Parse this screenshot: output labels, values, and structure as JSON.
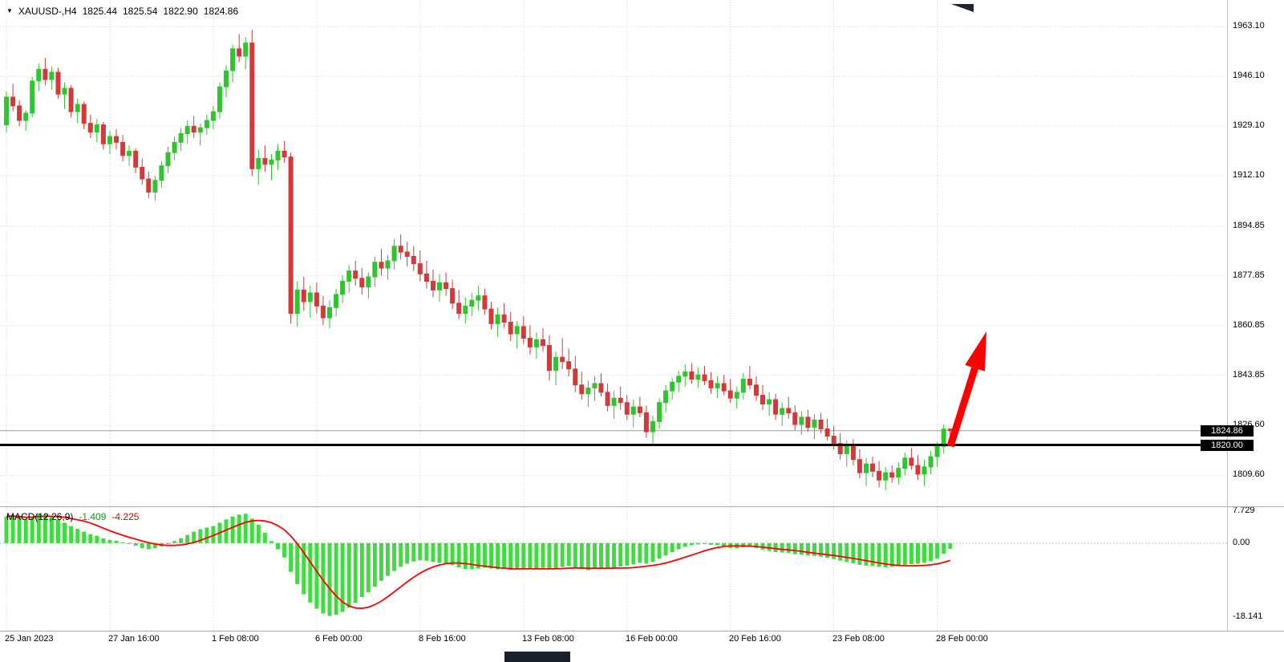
{
  "header": {
    "menu_icon": "▼",
    "symbol_timeframe": "XAUUSD-,H4",
    "open": "1825.44",
    "high": "1825.54",
    "low": "1822.90",
    "close": "1824.86"
  },
  "indicator_label": {
    "name": "MACD(12,26,9)",
    "main_value": "-1.409",
    "signal_value": "-4.225"
  },
  "colors": {
    "candle_up": "#2fc52f",
    "candle_down": "#d03a3a",
    "macd_bar": "#3fdc3f",
    "signal_line": "#ff0000",
    "horizontal_line": "#000000",
    "grid": "#d2d2d2",
    "current_price_line": "#9e9e9e",
    "arrow": "#ff0000",
    "price_tag_bg": "#000000",
    "price_tag_text": "#ffffff"
  },
  "chart_data": {
    "type": "candlestick",
    "title": "XAUUSD- H4",
    "symbol": "XAUUSD-",
    "timeframe": "H4",
    "y_axis": {
      "range_top": 1972.2,
      "range_bottom": 1799.0,
      "labels": [
        {
          "text": "1963.10",
          "value": 1963.1
        },
        {
          "text": "1946.10",
          "value": 1946.1
        },
        {
          "text": "1929.10",
          "value": 1929.1
        },
        {
          "text": "1912.10",
          "value": 1912.1
        },
        {
          "text": "1894.85",
          "value": 1894.85
        },
        {
          "text": "1877.85",
          "value": 1877.85
        },
        {
          "text": "1860.85",
          "value": 1860.85
        },
        {
          "text": "1843.85",
          "value": 1843.85
        },
        {
          "text": "1826.60",
          "value": 1826.6
        },
        {
          "text": "1809.60",
          "value": 1809.6
        }
      ]
    },
    "x_axis": {
      "labels": [
        {
          "text": "25 Jan 2023",
          "index": 0
        },
        {
          "text": "27 Jan 16:00",
          "index": 16
        },
        {
          "text": "1 Feb 08:00",
          "index": 32
        },
        {
          "text": "6 Feb 00:00",
          "index": 48
        },
        {
          "text": "8 Feb 16:00",
          "index": 64
        },
        {
          "text": "13 Feb 08:00",
          "index": 80
        },
        {
          "text": "16 Feb 00:00",
          "index": 96
        },
        {
          "text": "20 Feb 16:00",
          "index": 112
        },
        {
          "text": "23 Feb 08:00",
          "index": 128
        },
        {
          "text": "28 Feb 00:00",
          "index": 144
        }
      ]
    },
    "ohlc": [
      [
        1929.5,
        1941.0,
        1927.0,
        1939.0
      ],
      [
        1939.0,
        1943.5,
        1934.0,
        1936.0
      ],
      [
        1936.0,
        1938.0,
        1929.0,
        1931.0
      ],
      [
        1931.0,
        1934.5,
        1927.5,
        1933.5
      ],
      [
        1933.5,
        1946.0,
        1932.0,
        1944.5
      ],
      [
        1944.5,
        1950.5,
        1941.0,
        1948.5
      ],
      [
        1948.5,
        1952.5,
        1943.0,
        1945.0
      ],
      [
        1945.0,
        1949.5,
        1941.5,
        1947.5
      ],
      [
        1947.5,
        1949.0,
        1938.5,
        1940.0
      ],
      [
        1940.0,
        1944.0,
        1935.0,
        1942.0
      ],
      [
        1942.0,
        1943.0,
        1932.0,
        1934.0
      ],
      [
        1934.0,
        1938.5,
        1930.0,
        1936.5
      ],
      [
        1936.5,
        1937.5,
        1928.0,
        1930.0
      ],
      [
        1930.0,
        1933.0,
        1925.0,
        1927.0
      ],
      [
        1927.0,
        1931.5,
        1923.5,
        1929.5
      ],
      [
        1929.5,
        1930.5,
        1921.0,
        1923.0
      ],
      [
        1923.0,
        1927.5,
        1919.5,
        1925.5
      ],
      [
        1925.5,
        1928.0,
        1921.0,
        1923.5
      ],
      [
        1923.5,
        1926.0,
        1917.0,
        1919.0
      ],
      [
        1919.0,
        1922.5,
        1915.5,
        1920.5
      ],
      [
        1920.5,
        1921.5,
        1913.0,
        1915.0
      ],
      [
        1915.0,
        1918.0,
        1909.0,
        1911.0
      ],
      [
        1911.0,
        1913.5,
        1904.5,
        1906.5
      ],
      [
        1906.5,
        1912.0,
        1903.5,
        1910.5
      ],
      [
        1910.5,
        1917.0,
        1908.0,
        1915.5
      ],
      [
        1915.5,
        1922.0,
        1913.0,
        1920.0
      ],
      [
        1920.0,
        1925.5,
        1917.5,
        1923.5
      ],
      [
        1923.5,
        1928.5,
        1920.5,
        1926.5
      ],
      [
        1926.5,
        1931.0,
        1923.0,
        1929.0
      ],
      [
        1929.0,
        1932.5,
        1925.0,
        1927.0
      ],
      [
        1927.0,
        1930.0,
        1922.5,
        1928.5
      ],
      [
        1928.5,
        1933.0,
        1926.0,
        1931.0
      ],
      [
        1931.0,
        1936.0,
        1928.0,
        1934.0
      ],
      [
        1934.0,
        1944.0,
        1931.5,
        1942.5
      ],
      [
        1942.5,
        1950.0,
        1939.0,
        1948.0
      ],
      [
        1948.0,
        1957.0,
        1944.0,
        1955.5
      ],
      [
        1955.5,
        1960.5,
        1951.0,
        1953.0
      ],
      [
        1953.0,
        1959.5,
        1948.5,
        1957.5
      ],
      [
        1957.5,
        1962.0,
        1912.0,
        1914.5
      ],
      [
        1914.5,
        1921.0,
        1909.0,
        1918.0
      ],
      [
        1918.0,
        1922.5,
        1913.5,
        1916.0
      ],
      [
        1916.0,
        1919.5,
        1910.5,
        1917.5
      ],
      [
        1917.5,
        1923.0,
        1914.0,
        1920.5
      ],
      [
        1920.5,
        1924.0,
        1916.5,
        1918.5
      ],
      [
        1918.5,
        1920.0,
        1861.5,
        1865.0
      ],
      [
        1865.0,
        1876.0,
        1860.5,
        1873.0
      ],
      [
        1873.0,
        1877.5,
        1866.0,
        1869.0
      ],
      [
        1869.0,
        1874.5,
        1863.5,
        1872.0
      ],
      [
        1872.0,
        1875.5,
        1865.0,
        1867.5
      ],
      [
        1867.5,
        1871.0,
        1861.0,
        1863.5
      ],
      [
        1863.5,
        1869.5,
        1860.0,
        1867.0
      ],
      [
        1867.0,
        1873.5,
        1864.0,
        1871.5
      ],
      [
        1871.5,
        1878.0,
        1868.5,
        1876.0
      ],
      [
        1876.0,
        1881.5,
        1872.0,
        1879.5
      ],
      [
        1879.5,
        1883.0,
        1874.5,
        1877.0
      ],
      [
        1877.0,
        1880.5,
        1871.5,
        1874.0
      ],
      [
        1874.0,
        1879.0,
        1870.0,
        1877.5
      ],
      [
        1877.5,
        1884.5,
        1874.0,
        1882.5
      ],
      [
        1882.5,
        1887.0,
        1878.0,
        1880.5
      ],
      [
        1880.5,
        1885.0,
        1876.5,
        1883.0
      ],
      [
        1883.0,
        1890.5,
        1880.0,
        1888.0
      ],
      [
        1888.0,
        1892.0,
        1883.5,
        1886.0
      ],
      [
        1886.0,
        1889.5,
        1881.0,
        1884.5
      ],
      [
        1884.5,
        1888.0,
        1879.5,
        1882.0
      ],
      [
        1882.0,
        1886.5,
        1876.0,
        1878.5
      ],
      [
        1878.5,
        1883.0,
        1873.5,
        1876.0
      ],
      [
        1876.0,
        1880.0,
        1870.5,
        1873.0
      ],
      [
        1873.0,
        1878.5,
        1869.0,
        1875.5
      ],
      [
        1875.5,
        1879.0,
        1871.0,
        1873.5
      ],
      [
        1873.5,
        1876.5,
        1866.5,
        1868.5
      ],
      [
        1868.5,
        1873.0,
        1863.0,
        1865.0
      ],
      [
        1865.0,
        1870.5,
        1861.5,
        1867.5
      ],
      [
        1867.5,
        1872.0,
        1864.0,
        1869.5
      ],
      [
        1869.5,
        1874.5,
        1866.0,
        1871.0
      ],
      [
        1871.0,
        1873.5,
        1864.5,
        1866.5
      ],
      [
        1866.5,
        1869.0,
        1859.5,
        1861.5
      ],
      [
        1861.5,
        1867.0,
        1857.0,
        1864.5
      ],
      [
        1864.5,
        1868.5,
        1860.0,
        1862.0
      ],
      [
        1862.0,
        1865.5,
        1855.5,
        1858.0
      ],
      [
        1858.0,
        1862.5,
        1853.0,
        1860.5
      ],
      [
        1860.5,
        1864.0,
        1854.5,
        1856.5
      ],
      [
        1856.5,
        1861.0,
        1851.0,
        1853.5
      ],
      [
        1853.5,
        1858.5,
        1849.5,
        1856.0
      ],
      [
        1856.0,
        1860.0,
        1852.0,
        1854.0
      ],
      [
        1854.0,
        1857.5,
        1842.0,
        1845.5
      ],
      [
        1845.5,
        1852.0,
        1840.5,
        1850.0
      ],
      [
        1850.0,
        1856.5,
        1846.0,
        1848.5
      ],
      [
        1848.5,
        1853.0,
        1843.5,
        1846.0
      ],
      [
        1846.0,
        1850.5,
        1838.0,
        1840.5
      ],
      [
        1840.5,
        1845.0,
        1835.5,
        1837.5
      ],
      [
        1837.5,
        1842.0,
        1833.0,
        1839.5
      ],
      [
        1839.5,
        1843.5,
        1835.0,
        1841.0
      ],
      [
        1841.0,
        1844.5,
        1836.5,
        1838.0
      ],
      [
        1838.0,
        1841.0,
        1831.5,
        1833.5
      ],
      [
        1833.5,
        1838.5,
        1829.0,
        1836.0
      ],
      [
        1836.0,
        1840.0,
        1832.0,
        1834.5
      ],
      [
        1834.5,
        1837.0,
        1828.5,
        1830.5
      ],
      [
        1830.5,
        1835.5,
        1826.0,
        1833.0
      ],
      [
        1833.0,
        1836.5,
        1829.5,
        1831.0
      ],
      [
        1831.0,
        1833.5,
        1822.5,
        1824.5
      ],
      [
        1824.5,
        1830.0,
        1820.5,
        1828.0
      ],
      [
        1828.0,
        1836.0,
        1825.5,
        1834.5
      ],
      [
        1834.5,
        1840.5,
        1831.0,
        1838.5
      ],
      [
        1838.5,
        1843.0,
        1835.5,
        1841.5
      ],
      [
        1841.5,
        1845.5,
        1838.0,
        1843.5
      ],
      [
        1843.5,
        1847.5,
        1840.0,
        1845.0
      ],
      [
        1845.0,
        1848.0,
        1841.0,
        1842.5
      ],
      [
        1842.5,
        1846.5,
        1839.5,
        1844.0
      ],
      [
        1844.0,
        1847.0,
        1840.5,
        1842.0
      ],
      [
        1842.0,
        1845.0,
        1837.5,
        1839.5
      ],
      [
        1839.5,
        1843.5,
        1836.0,
        1841.0
      ],
      [
        1841.0,
        1844.0,
        1837.0,
        1838.5
      ],
      [
        1838.5,
        1842.5,
        1834.5,
        1836.0
      ],
      [
        1836.0,
        1840.0,
        1832.5,
        1838.0
      ],
      [
        1838.0,
        1844.5,
        1835.5,
        1842.5
      ],
      [
        1842.5,
        1847.0,
        1839.0,
        1840.5
      ],
      [
        1840.5,
        1843.5,
        1835.0,
        1837.0
      ],
      [
        1837.0,
        1840.5,
        1832.0,
        1834.0
      ],
      [
        1834.0,
        1838.0,
        1830.0,
        1835.5
      ],
      [
        1835.5,
        1837.5,
        1828.5,
        1830.5
      ],
      [
        1830.5,
        1834.5,
        1826.5,
        1832.5
      ],
      [
        1832.5,
        1836.5,
        1829.0,
        1831.0
      ],
      [
        1831.0,
        1833.5,
        1825.0,
        1827.0
      ],
      [
        1827.0,
        1831.5,
        1823.5,
        1829.5
      ],
      [
        1829.5,
        1832.0,
        1824.5,
        1826.0
      ],
      [
        1826.0,
        1830.5,
        1822.0,
        1828.5
      ],
      [
        1828.5,
        1831.0,
        1824.0,
        1825.5
      ],
      [
        1825.5,
        1829.0,
        1821.5,
        1823.0
      ],
      [
        1823.0,
        1826.5,
        1818.5,
        1820.5
      ],
      [
        1820.5,
        1824.0,
        1815.0,
        1817.0
      ],
      [
        1817.0,
        1821.5,
        1812.5,
        1819.5
      ],
      [
        1819.5,
        1822.0,
        1813.0,
        1815.0
      ],
      [
        1815.0,
        1818.5,
        1808.5,
        1810.5
      ],
      [
        1810.5,
        1815.5,
        1806.0,
        1813.5
      ],
      [
        1813.5,
        1816.0,
        1809.0,
        1811.0
      ],
      [
        1811.0,
        1814.5,
        1805.5,
        1808.0
      ],
      [
        1808.0,
        1812.5,
        1804.5,
        1810.5
      ],
      [
        1810.5,
        1813.0,
        1807.0,
        1809.0
      ],
      [
        1809.0,
        1814.0,
        1806.5,
        1812.0
      ],
      [
        1812.0,
        1817.5,
        1809.5,
        1815.5
      ],
      [
        1815.5,
        1819.0,
        1811.5,
        1813.0
      ],
      [
        1813.0,
        1816.5,
        1808.0,
        1810.0
      ],
      [
        1810.0,
        1815.0,
        1806.0,
        1812.5
      ],
      [
        1812.5,
        1818.0,
        1810.0,
        1816.0
      ],
      [
        1816.0,
        1821.0,
        1812.5,
        1819.5
      ],
      [
        1819.5,
        1827.0,
        1817.0,
        1825.44
      ],
      [
        1825.44,
        1825.54,
        1822.9,
        1824.86
      ]
    ],
    "indicator": {
      "name": "MACD(12,26,9)",
      "main_value": -1.409,
      "signal_value": -4.225,
      "signal_period": 9,
      "y_top_value": 8.8,
      "y_bottom_value": -21.4,
      "y_labels": [
        {
          "text": "7.729",
          "value": 7.729
        },
        {
          "text": "0.00",
          "value": 0
        },
        {
          "text": "-18.141",
          "value": -18.141
        }
      ],
      "histogram": [
        6.5,
        6.8,
        6.2,
        5.8,
        6.5,
        7.2,
        7.0,
        6.5,
        5.8,
        5.0,
        4.2,
        3.5,
        2.8,
        2.2,
        1.8,
        1.2,
        0.8,
        0.6,
        0.2,
        -0.2,
        -0.6,
        -1.2,
        -1.5,
        -1.2,
        -0.8,
        -0.2,
        0.5,
        1.2,
        2.0,
        2.8,
        3.4,
        3.8,
        4.2,
        5.0,
        5.8,
        6.5,
        7.0,
        7.2,
        6.0,
        4.5,
        2.5,
        0.5,
        -1.5,
        -3.5,
        -7.0,
        -10.0,
        -12.5,
        -14.5,
        -16.0,
        -17.2,
        -17.8,
        -17.5,
        -16.8,
        -15.8,
        -14.6,
        -13.2,
        -12.0,
        -10.6,
        -9.2,
        -8.0,
        -6.8,
        -5.8,
        -5.0,
        -4.5,
        -4.2,
        -4.3,
        -4.6,
        -4.8,
        -5.0,
        -5.4,
        -5.9,
        -6.3,
        -6.4,
        -6.2,
        -6.0,
        -6.2,
        -6.4,
        -6.3,
        -6.5,
        -6.4,
        -6.2,
        -6.3,
        -6.1,
        -6.0,
        -6.4,
        -6.2,
        -5.8,
        -5.6,
        -6.0,
        -6.4,
        -6.6,
        -6.3,
        -6.0,
        -6.2,
        -6.0,
        -5.7,
        -5.5,
        -5.2,
        -4.8,
        -5.0,
        -4.6,
        -3.8,
        -3.0,
        -2.2,
        -1.5,
        -0.9,
        -0.5,
        -0.3,
        -0.2,
        -0.4,
        -0.5,
        -0.8,
        -1.2,
        -1.3,
        -1.0,
        -0.9,
        -1.2,
        -1.6,
        -1.9,
        -2.2,
        -2.3,
        -2.4,
        -2.7,
        -2.8,
        -3.0,
        -3.1,
        -3.3,
        -3.6,
        -3.9,
        -4.3,
        -4.6,
        -4.9,
        -5.3,
        -5.5,
        -5.6,
        -5.8,
        -5.9,
        -5.8,
        -5.6,
        -5.3,
        -5.1,
        -5.0,
        -4.8,
        -4.4,
        -3.8,
        -2.6,
        -1.409
      ]
    },
    "annotations": {
      "horizontal_line": {
        "value": 1820.0,
        "label": "1820.00"
      },
      "current_price": {
        "value": 1824.86,
        "label": "1824.86"
      },
      "arrow": {
        "tail": [
          1185,
          556
        ],
        "tip": [
          1230,
          413
        ],
        "direction": "up-right"
      }
    }
  }
}
